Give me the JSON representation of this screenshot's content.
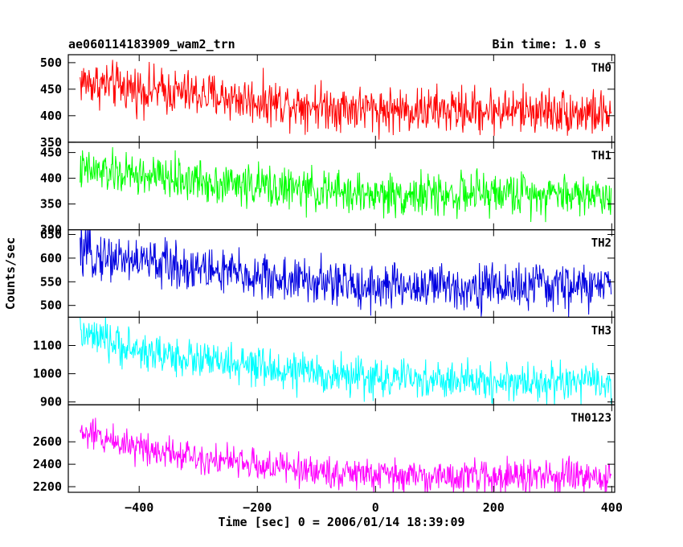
{
  "chart_data": {
    "type": "line",
    "title": "ae060114183909_wam2_trn",
    "subtitle": "Bin time: 1.0 s",
    "xlabel": "Time [sec] 0 = 2006/01/14 18:39:09",
    "ylabel": "Counts/sec",
    "xlim": [
      -520,
      405
    ],
    "x_ticks": [
      "−400",
      "−200",
      "0",
      "200",
      "400"
    ],
    "x_tick_values": [
      -400,
      -200,
      0,
      200,
      400
    ],
    "x_range": [
      -500,
      399
    ],
    "panels": [
      {
        "name": "TH0",
        "color": "#ff0000",
        "ylim": [
          350,
          515
        ],
        "y_ticks": [
          "350",
          "400",
          "450",
          "500"
        ],
        "y_tick_values": [
          350,
          400,
          450,
          500
        ],
        "trend_x": [
          -500,
          -400,
          -300,
          -200,
          -100,
          0,
          100,
          200,
          300,
          400
        ],
        "trend_y": [
          465,
          450,
          440,
          428,
          420,
          412,
          410,
          410,
          410,
          402
        ],
        "noise_amplitude": 48
      },
      {
        "name": "TH1",
        "color": "#00ff00",
        "ylim": [
          300,
          470
        ],
        "y_ticks": [
          "300",
          "350",
          "400",
          "450"
        ],
        "y_tick_values": [
          300,
          350,
          400,
          450
        ],
        "trend_x": [
          -500,
          -400,
          -300,
          -200,
          -100,
          0,
          100,
          200,
          300,
          400
        ],
        "trend_y": [
          415,
          405,
          395,
          385,
          375,
          368,
          368,
          370,
          372,
          365
        ],
        "noise_amplitude": 45
      },
      {
        "name": "TH2",
        "color": "#0000e0",
        "ylim": [
          475,
          660
        ],
        "y_ticks": [
          "500",
          "550",
          "600",
          "650"
        ],
        "y_tick_values": [
          500,
          550,
          600,
          650
        ],
        "trend_x": [
          -500,
          -400,
          -300,
          -200,
          -100,
          0,
          100,
          200,
          300,
          400
        ],
        "trend_y": [
          610,
          595,
          578,
          560,
          548,
          540,
          540,
          540,
          540,
          540
        ],
        "noise_amplitude": 55
      },
      {
        "name": "TH3",
        "color": "#00ffff",
        "ylim": [
          890,
          1200
        ],
        "y_ticks": [
          "900",
          "1000",
          "1100"
        ],
        "y_tick_values": [
          900,
          1000,
          1100
        ],
        "trend_x": [
          -500,
          -400,
          -300,
          -200,
          -100,
          0,
          100,
          200,
          300,
          400
        ],
        "trend_y": [
          1140,
          1080,
          1050,
          1020,
          1000,
          985,
          975,
          972,
          970,
          965
        ],
        "noise_amplitude": 75
      },
      {
        "name": "TH0123",
        "color": "#ff00ff",
        "ylim": [
          2150,
          2930
        ],
        "y_ticks": [
          "2200",
          "2400",
          "2600"
        ],
        "y_tick_values": [
          2200,
          2400,
          2600
        ],
        "trend_x": [
          -500,
          -400,
          -300,
          -200,
          -100,
          0,
          100,
          200,
          300,
          400
        ],
        "trend_y": [
          2680,
          2560,
          2470,
          2390,
          2340,
          2300,
          2290,
          2290,
          2290,
          2270
        ],
        "noise_amplitude": 160
      }
    ]
  }
}
